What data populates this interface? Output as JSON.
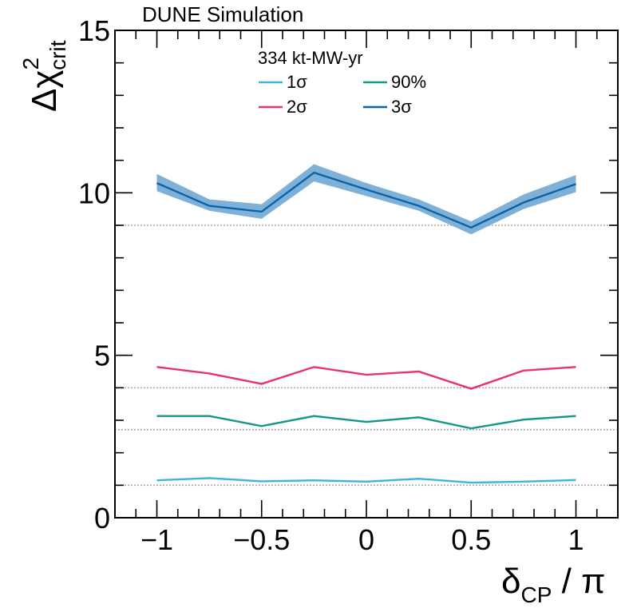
{
  "chart_data": {
    "type": "line",
    "header": "DUNE Simulation",
    "exposure_label": "334 kt-MW-yr",
    "xlabel": {
      "main": "δ",
      "sub": "CP",
      "rest": " / π"
    },
    "ylabel": {
      "main": "Δχ",
      "sup": "2",
      "sub": "crit"
    },
    "xlim": [
      -1.2,
      1.2
    ],
    "ylim": [
      0,
      15
    ],
    "x_ticks": [
      -1,
      -0.5,
      0,
      0.5,
      1
    ],
    "x_tick_labels": [
      "−1",
      "−0.5",
      "0",
      "0.5",
      "1"
    ],
    "y_ticks": [
      0,
      5,
      10,
      15
    ],
    "y_tick_labels": [
      "0",
      "5",
      "10",
      "15"
    ],
    "x": [
      -1,
      -0.75,
      -0.5,
      -0.25,
      0,
      0.25,
      0.5,
      0.75,
      1
    ],
    "series": [
      {
        "name": "1σ",
        "color": "#3cb4e0",
        "values": [
          1.15,
          1.22,
          1.12,
          1.15,
          1.11,
          1.2,
          1.08,
          1.11,
          1.16
        ]
      },
      {
        "name": "2σ",
        "color": "#e8336b",
        "values": [
          4.64,
          4.44,
          4.12,
          4.64,
          4.4,
          4.5,
          3.97,
          4.53,
          4.64
        ]
      },
      {
        "name": "90%",
        "color": "#119886",
        "values": [
          3.13,
          3.13,
          2.82,
          3.13,
          2.95,
          3.09,
          2.75,
          3.02,
          3.13
        ]
      },
      {
        "name": "3σ",
        "color": "#0a64a8",
        "values": [
          10.3,
          9.6,
          9.42,
          10.62,
          10.1,
          9.6,
          8.93,
          9.7,
          10.27
        ]
      }
    ],
    "band_3sigma": {
      "color": "#7fb1d8",
      "lower": [
        10.05,
        9.45,
        9.2,
        10.35,
        9.9,
        9.45,
        8.72,
        9.5,
        10.02
      ],
      "upper": [
        10.58,
        9.8,
        9.65,
        10.88,
        10.3,
        9.8,
        9.12,
        9.95,
        10.55
      ]
    },
    "reference_lines": [
      1.0,
      2.71,
      4.0,
      9.0
    ],
    "legend_placement": "top-center",
    "grid": false
  }
}
